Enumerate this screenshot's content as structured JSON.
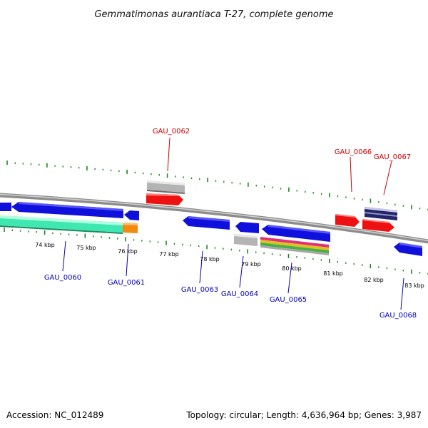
{
  "title": "Gemmatimonas aurantiaca T-27, complete genome",
  "footer": {
    "accession": "Accession: NC_012489",
    "summary": "Topology: circular; Length: 4,636,964 bp; Genes: 3,987"
  },
  "colors": {
    "backbone": "#8c8c8c",
    "tick": "#1a8a1a",
    "forward_gene": "#ee1111",
    "reverse_gene": "#1010dd",
    "forward_label": "#cc0000",
    "reverse_label": "#0000bb",
    "rrna_gray": "#b4b4b4",
    "cds_teal": "#3ee8b0",
    "cds_orange": "#f28a10",
    "navy": "#242468",
    "stripe_pink": "#e0307a",
    "stripe_yellow": "#e0c020",
    "stripe_green": "#46b046"
  },
  "tick_labels": [
    "74 kbp",
    "75 kbp",
    "76 kbp",
    "77 kbp",
    "78 kbp",
    "79 kbp",
    "80 kbp",
    "81 kbp",
    "82 kbp",
    "83 kbp"
  ],
  "genes": [
    {
      "name": "GAU_0060",
      "strand": "reverse"
    },
    {
      "name": "GAU_0061",
      "strand": "reverse"
    },
    {
      "name": "GAU_0062",
      "strand": "forward"
    },
    {
      "name": "GAU_0063",
      "strand": "reverse"
    },
    {
      "name": "GAU_0064",
      "strand": "reverse"
    },
    {
      "name": "GAU_0065",
      "strand": "reverse"
    },
    {
      "name": "GAU_0066",
      "strand": "forward"
    },
    {
      "name": "GAU_0067",
      "strand": "forward"
    },
    {
      "name": "GAU_0068",
      "strand": "reverse"
    }
  ]
}
